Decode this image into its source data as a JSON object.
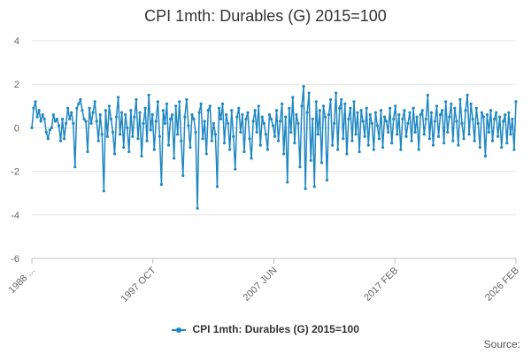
{
  "chart_data": {
    "type": "line",
    "title": "CPI 1mth: Durables (G) 2015=100",
    "xlabel": "",
    "ylabel": "",
    "ylim": [
      -6,
      4
    ],
    "yticks": [
      "4",
      "2",
      "0",
      "-2",
      "-4",
      "-6"
    ],
    "xtick_labels": [
      "1988 ...",
      "1997 OCT",
      "2007 JUN",
      "2017 FEB",
      "2026 FEB"
    ],
    "x_range": [
      "1988 JAN",
      "2026 FEB"
    ],
    "grid": true,
    "legend_position": "bottom",
    "source_label": "Source:",
    "series": [
      {
        "name": "CPI 1mth: Durables (G) 2015=100",
        "color": "#1f87c2",
        "values": [
          0.0,
          0.9,
          1.2,
          0.5,
          0.8,
          0.3,
          0.6,
          0.4,
          -0.2,
          -0.5,
          -0.1,
          0.0,
          0.6,
          0.3,
          0.4,
          0.1,
          -0.6,
          0.4,
          -0.5,
          0.2,
          0.9,
          0.4,
          0.7,
          0.2,
          -1.8,
          0.9,
          1.1,
          1.3,
          0.8,
          0.4,
          0.3,
          -1.1,
          0.9,
          0.2,
          0.7,
          1.2,
          0.3,
          -0.6,
          0.6,
          -0.3,
          -2.9,
          0.8,
          -0.4,
          1.0,
          0.4,
          -0.2,
          -1.2,
          0.5,
          1.4,
          -0.3,
          0.7,
          -0.9,
          0.6,
          0.0,
          -1.1,
          0.8,
          -0.4,
          0.5,
          1.3,
          -0.5,
          0.7,
          -1.3,
          0.2,
          0.9,
          -0.6,
          1.5,
          -0.1,
          0.6,
          -1.0,
          0.3,
          1.2,
          -0.4,
          -2.6,
          0.8,
          0.2,
          1.1,
          -0.8,
          0.4,
          0.6,
          -1.4,
          1.0,
          -0.3,
          1.2,
          -0.6,
          -2.2,
          0.5,
          1.3,
          0.1,
          -0.9,
          0.6,
          0.4,
          -0.2,
          -3.7,
          0.7,
          1.1,
          -0.5,
          0.3,
          -1.2,
          0.8,
          1.0,
          -0.6,
          0.2,
          -0.3,
          -2.7,
          0.9,
          0.4,
          1.1,
          -0.7,
          0.6,
          0.2,
          -1.0,
          0.8,
          -0.4,
          -1.9,
          0.5,
          0.9,
          -0.2,
          0.6,
          -1.1,
          0.4,
          0.7,
          -0.5,
          -1.4,
          0.3,
          0.8,
          -0.2,
          1.0,
          -0.8,
          0.5,
          0.2,
          -0.3,
          -1.0,
          0.6,
          0.4,
          0.1,
          -0.4,
          0.8,
          -0.6,
          0.3,
          1.1,
          -1.2,
          0.5,
          -2.5,
          0.9,
          -0.2,
          1.4,
          -0.7,
          0.6,
          0.2,
          -1.8,
          1.0,
          1.9,
          -2.8,
          0.7,
          1.6,
          -1.5,
          0.4,
          -2.7,
          1.2,
          -0.3,
          0.8,
          -1.6,
          1.0,
          0.5,
          -2.4,
          0.6,
          1.3,
          -0.8,
          0.2,
          1.6,
          -1.0,
          0.9,
          1.3,
          -0.5,
          1.1,
          -1.2,
          0.4,
          0.9,
          -0.6,
          1.2,
          -0.3,
          0.7,
          -1.1,
          0.8,
          0.3,
          -0.4,
          0.9,
          -0.8,
          0.6,
          0.2,
          -1.0,
          0.7,
          0.1,
          -0.5,
          0.8,
          -0.9,
          0.5,
          0.3,
          -0.2,
          0.9,
          -0.7,
          0.4,
          1.0,
          -0.3,
          0.6,
          -1.0,
          0.4,
          0.8,
          -0.4,
          0.2,
          0.7,
          -0.6,
          0.9,
          -0.2,
          0.5,
          -1.0,
          0.6,
          0.8,
          -0.3,
          0.4,
          1.5,
          -0.5,
          0.7,
          -0.8,
          0.3,
          1.0,
          -0.4,
          0.6,
          0.8,
          -0.7,
          1.2,
          -0.2,
          0.5,
          1.1,
          -0.6,
          0.9,
          0.3,
          -0.8,
          1.3,
          0.2,
          -0.5,
          0.8,
          1.5,
          -0.3,
          1.1,
          0.4,
          -0.6,
          0.9,
          0.2,
          -0.9,
          0.7,
          0.5,
          -1.3,
          0.6,
          -0.2,
          0.8,
          -0.6,
          0.4,
          0.7,
          -0.4,
          0.5,
          -0.9,
          0.3,
          0.6,
          -0.7,
          0.7,
          -0.3,
          0.4,
          -1.0,
          1.2
        ]
      }
    ]
  }
}
